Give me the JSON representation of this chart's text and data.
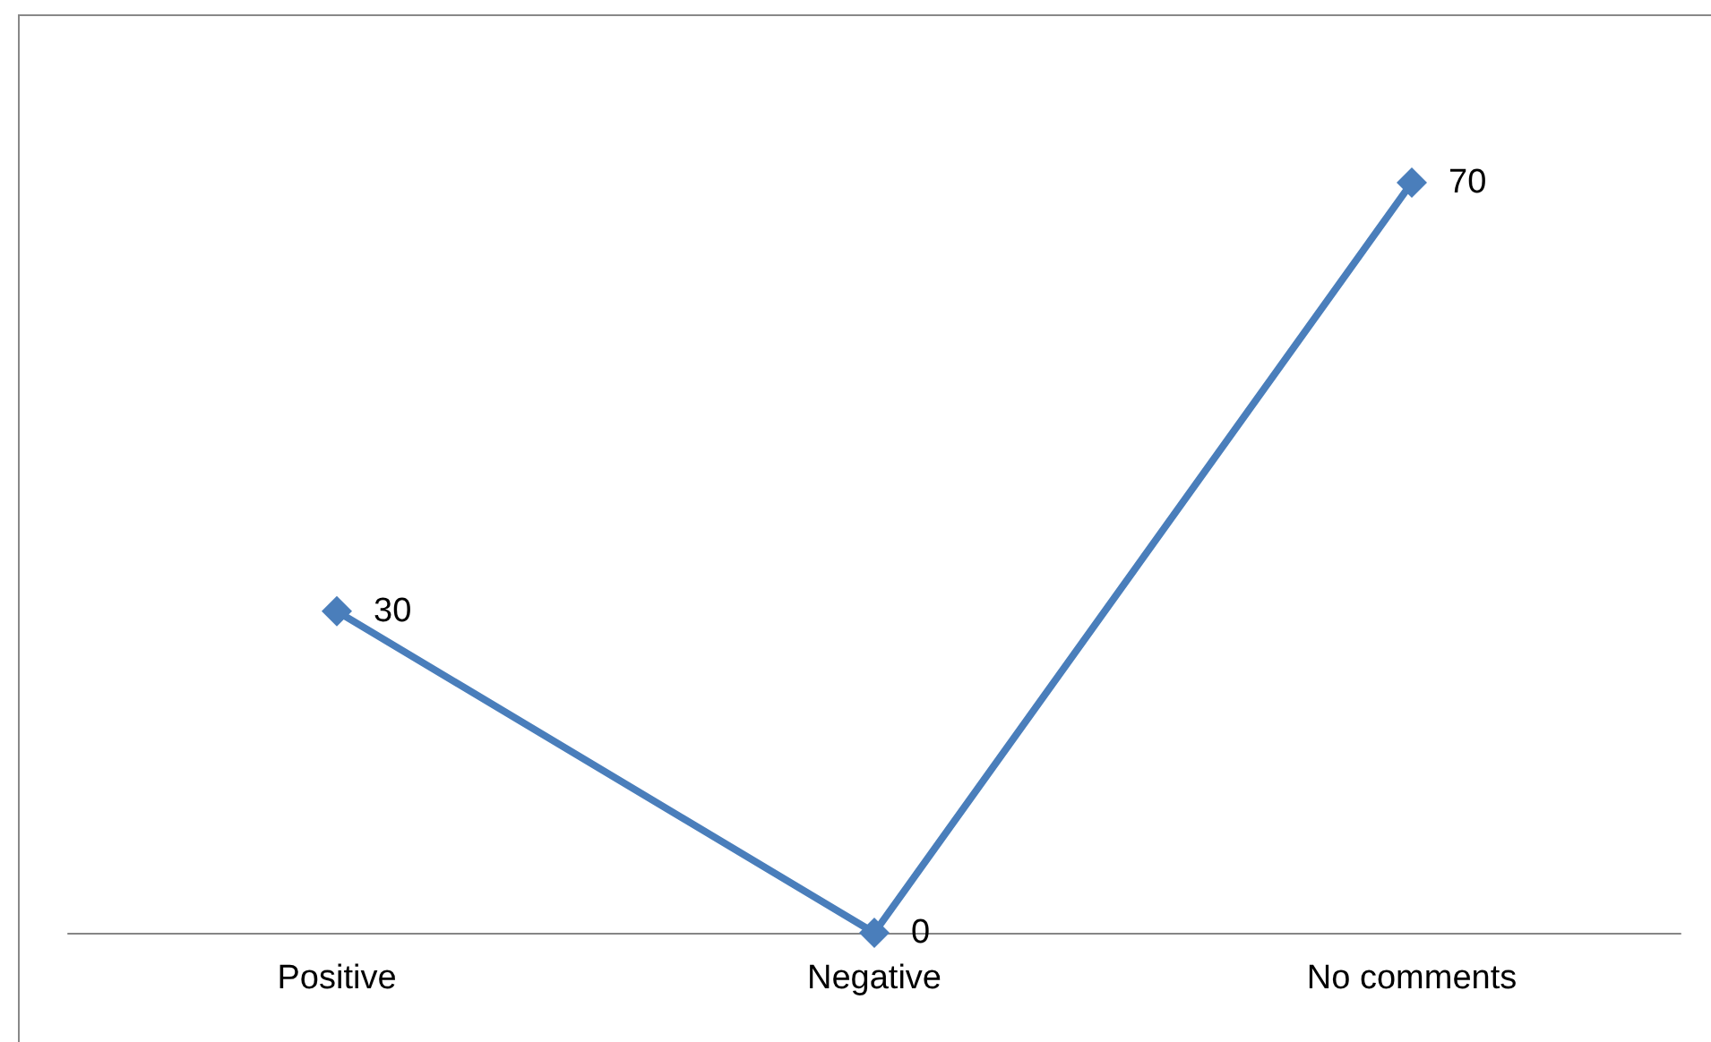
{
  "chart_data": {
    "type": "line",
    "categories": [
      "Positive",
      "Negative",
      "No comments"
    ],
    "series": [
      {
        "color": "#4a7ebb",
        "values": [
          30,
          0,
          70
        ]
      }
    ],
    "data_labels": true,
    "marker": "diamond",
    "line_style": "solid",
    "grid": false
  }
}
